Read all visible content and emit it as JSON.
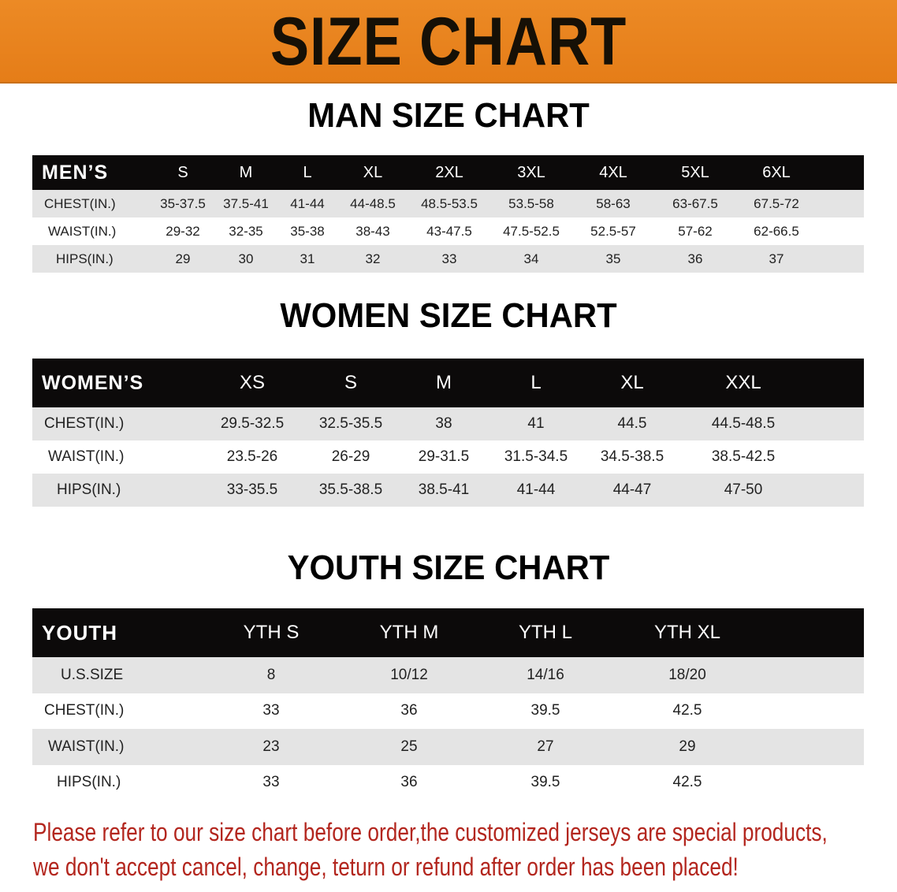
{
  "banner": {
    "title": "SIZE CHART",
    "color": "#E8821E"
  },
  "men": {
    "title": "MAN SIZE CHART",
    "header": "MEN’S",
    "sizes": [
      "S",
      "M",
      "L",
      "XL",
      "2XL",
      "3XL",
      "4XL",
      "5XL",
      "6XL"
    ],
    "rows": [
      {
        "label": "CHEST(IN.)",
        "values": [
          "35-37.5",
          "37.5-41",
          "41-44",
          "44-48.5",
          "48.5-53.5",
          "53.5-58",
          "58-63",
          "63-67.5",
          "67.5-72"
        ]
      },
      {
        "label": "WAIST(IN.)",
        "values": [
          "29-32",
          "32-35",
          "35-38",
          "38-43",
          "43-47.5",
          "47.5-52.5",
          "52.5-57",
          "57-62",
          "62-66.5"
        ]
      },
      {
        "label": "HIPS(IN.)",
        "values": [
          "29",
          "30",
          "31",
          "32",
          "33",
          "34",
          "35",
          "36",
          "37"
        ]
      }
    ]
  },
  "women": {
    "title": "WOMEN SIZE CHART",
    "header": "WOMEN’S",
    "sizes": [
      "XS",
      "S",
      "M",
      "L",
      "XL",
      "XXL"
    ],
    "rows": [
      {
        "label": "CHEST(IN.)",
        "values": [
          "29.5-32.5",
          "32.5-35.5",
          "38",
          "41",
          "44.5",
          "44.5-48.5"
        ]
      },
      {
        "label": "WAIST(IN.)",
        "values": [
          "23.5-26",
          "26-29",
          "29-31.5",
          "31.5-34.5",
          "34.5-38.5",
          "38.5-42.5"
        ]
      },
      {
        "label": "HIPS(IN.)",
        "values": [
          "33-35.5",
          "35.5-38.5",
          "38.5-41",
          "41-44",
          "44-47",
          "47-50"
        ]
      }
    ]
  },
  "youth": {
    "title": "YOUTH SIZE CHART",
    "header": "YOUTH",
    "sizes": [
      "YTH S",
      "YTH M",
      "YTH L",
      "YTH XL"
    ],
    "rows": [
      {
        "label": "U.S.SIZE",
        "values": [
          "8",
          "10/12",
          "14/16",
          "18/20"
        ]
      },
      {
        "label": "CHEST(IN.)",
        "values": [
          "33",
          "36",
          "39.5",
          "42.5"
        ]
      },
      {
        "label": "WAIST(IN.)",
        "values": [
          "23",
          "25",
          "27",
          "29"
        ]
      },
      {
        "label": "HIPS(IN.)",
        "values": [
          "33",
          "36",
          "39.5",
          "42.5"
        ]
      }
    ]
  },
  "note": {
    "line1": "Please refer to our size chart before order,the customized jerseys are special products,",
    "line2": "we don't accept cancel, change, teturn or refund after order has been placed!",
    "color": "#B3261E"
  }
}
